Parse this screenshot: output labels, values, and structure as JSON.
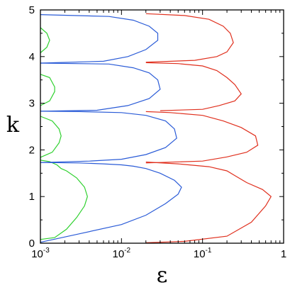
{
  "chart_data": {
    "type": "line",
    "title": "",
    "xlabel": "ε",
    "ylabel": "k",
    "xscale": "log",
    "xlim": [
      0.001,
      1
    ],
    "ylim": [
      0,
      5
    ],
    "grid": false,
    "legend": "none",
    "x_ticks": [
      {
        "value": 0.001,
        "base": "10",
        "exp": "-3"
      },
      {
        "value": 0.01,
        "base": "10",
        "exp": "-2"
      },
      {
        "value": 0.1,
        "base": "10",
        "exp": "-1"
      },
      {
        "value": 1,
        "base": "1",
        "exp": ""
      }
    ],
    "y_ticks": [
      "0",
      "1",
      "2",
      "3",
      "4",
      "5"
    ],
    "colors": {
      "green": "#2fd12f",
      "blue": "#2a5bd7",
      "red": "#e0301e"
    },
    "series": [
      {
        "color": "green",
        "points": [
          [
            0.001,
            0.08
          ],
          [
            0.0015,
            0.12
          ],
          [
            0.0021,
            0.3
          ],
          [
            0.0028,
            0.55
          ],
          [
            0.0035,
            0.8
          ],
          [
            0.0038,
            1.0
          ],
          [
            0.0035,
            1.2
          ],
          [
            0.0028,
            1.4
          ],
          [
            0.0021,
            1.55
          ],
          [
            0.0018,
            1.6
          ],
          [
            0.0016,
            1.68
          ],
          [
            0.0013,
            1.75
          ],
          [
            0.001,
            1.78
          ]
        ]
      },
      {
        "color": "green",
        "points": [
          [
            0.001,
            1.84
          ],
          [
            0.0014,
            1.95
          ],
          [
            0.0017,
            2.15
          ],
          [
            0.0018,
            2.3
          ],
          [
            0.0017,
            2.45
          ],
          [
            0.0014,
            2.62
          ],
          [
            0.001,
            2.72
          ]
        ]
      },
      {
        "color": "green",
        "points": [
          [
            0.001,
            2.95
          ],
          [
            0.0013,
            3.05
          ],
          [
            0.0015,
            3.25
          ],
          [
            0.0015,
            3.35
          ],
          [
            0.0013,
            3.55
          ],
          [
            0.001,
            3.62
          ]
        ]
      },
      {
        "color": "green",
        "points": [
          [
            0.001,
            4.08
          ],
          [
            0.0012,
            4.2
          ],
          [
            0.0013,
            4.35
          ],
          [
            0.0012,
            4.5
          ],
          [
            0.001,
            4.62
          ]
        ]
      },
      {
        "color": "blue",
        "points": [
          [
            0.001,
            0.02
          ],
          [
            0.003,
            0.2
          ],
          [
            0.01,
            0.4
          ],
          [
            0.02,
            0.6
          ],
          [
            0.035,
            0.85
          ],
          [
            0.05,
            1.05
          ],
          [
            0.055,
            1.2
          ],
          [
            0.045,
            1.35
          ],
          [
            0.03,
            1.5
          ],
          [
            0.02,
            1.6
          ],
          [
            0.014,
            1.65
          ],
          [
            0.01,
            1.68
          ],
          [
            0.006,
            1.7
          ],
          [
            0.003,
            1.72
          ],
          [
            0.001,
            1.73
          ]
        ]
      },
      {
        "color": "blue",
        "points": [
          [
            0.001,
            1.73
          ],
          [
            0.004,
            1.76
          ],
          [
            0.01,
            1.8
          ],
          [
            0.02,
            1.9
          ],
          [
            0.035,
            2.05
          ],
          [
            0.048,
            2.25
          ],
          [
            0.045,
            2.45
          ],
          [
            0.035,
            2.62
          ],
          [
            0.02,
            2.74
          ],
          [
            0.01,
            2.8
          ],
          [
            0.003,
            2.82
          ],
          [
            0.001,
            2.83
          ]
        ]
      },
      {
        "color": "blue",
        "points": [
          [
            0.001,
            2.83
          ],
          [
            0.005,
            2.85
          ],
          [
            0.012,
            2.95
          ],
          [
            0.022,
            3.1
          ],
          [
            0.03,
            3.3
          ],
          [
            0.028,
            3.5
          ],
          [
            0.022,
            3.65
          ],
          [
            0.014,
            3.76
          ],
          [
            0.007,
            3.84
          ],
          [
            0.001,
            3.86
          ]
        ]
      },
      {
        "color": "blue",
        "points": [
          [
            0.001,
            3.86
          ],
          [
            0.006,
            3.9
          ],
          [
            0.012,
            4.0
          ],
          [
            0.02,
            4.15
          ],
          [
            0.028,
            4.35
          ],
          [
            0.028,
            4.5
          ],
          [
            0.022,
            4.65
          ],
          [
            0.014,
            4.78
          ],
          [
            0.007,
            4.86
          ],
          [
            0.001,
            4.9
          ]
        ]
      },
      {
        "color": "red",
        "points": [
          [
            0.02,
            0.01
          ],
          [
            0.06,
            0.04
          ],
          [
            0.2,
            0.15
          ],
          [
            0.4,
            0.45
          ],
          [
            0.6,
            0.8
          ],
          [
            0.7,
            1.0
          ],
          [
            0.55,
            1.15
          ],
          [
            0.35,
            1.3
          ],
          [
            0.25,
            1.45
          ],
          [
            0.2,
            1.55
          ],
          [
            0.12,
            1.64
          ],
          [
            0.05,
            1.7
          ],
          [
            0.02,
            1.74
          ]
        ]
      },
      {
        "color": "red",
        "points": [
          [
            0.02,
            1.72
          ],
          [
            0.1,
            1.76
          ],
          [
            0.2,
            1.85
          ],
          [
            0.35,
            1.95
          ],
          [
            0.48,
            2.1
          ],
          [
            0.45,
            2.3
          ],
          [
            0.3,
            2.48
          ],
          [
            0.18,
            2.62
          ],
          [
            0.1,
            2.74
          ],
          [
            0.04,
            2.8
          ],
          [
            0.02,
            2.82
          ]
        ]
      },
      {
        "color": "red",
        "points": [
          [
            0.03,
            2.84
          ],
          [
            0.1,
            2.87
          ],
          [
            0.16,
            2.95
          ],
          [
            0.25,
            3.05
          ],
          [
            0.3,
            3.2
          ],
          [
            0.25,
            3.4
          ],
          [
            0.2,
            3.55
          ],
          [
            0.15,
            3.7
          ],
          [
            0.1,
            3.8
          ],
          [
            0.05,
            3.85
          ],
          [
            0.02,
            3.87
          ]
        ]
      },
      {
        "color": "red",
        "points": [
          [
            0.02,
            3.88
          ],
          [
            0.08,
            3.92
          ],
          [
            0.15,
            4.0
          ],
          [
            0.2,
            4.1
          ],
          [
            0.24,
            4.3
          ],
          [
            0.22,
            4.5
          ],
          [
            0.18,
            4.65
          ],
          [
            0.12,
            4.8
          ],
          [
            0.06,
            4.88
          ],
          [
            0.02,
            4.92
          ]
        ]
      }
    ]
  }
}
